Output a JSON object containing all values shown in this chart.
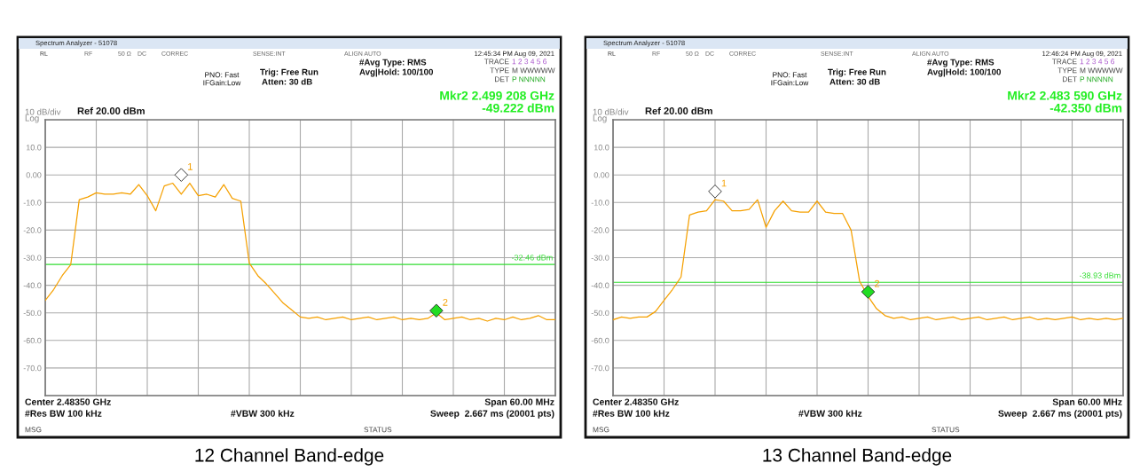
{
  "chart_data": [
    {
      "type": "line",
      "title": "12 Channel Band-edge",
      "annotations": [
        "Spectrum Analyzer - 51078",
        "RL",
        "RF",
        "50 Ω",
        "DC",
        "CORREC",
        "SENSE:INT",
        "ALIGN AUTO",
        "12:45:34 PM Aug 09, 2021",
        "PNO: Fast",
        "IFGain:Low",
        "Trig: Free Run",
        "Atten: 30 dB",
        "#Avg Type: RMS",
        "Avg|Hold: 100/100",
        "TRACE",
        "1 2 3 4 5 6",
        "TYPE",
        "M WWWWW",
        "DET",
        "P NNNNN",
        "Mkr2 2.499 208 GHz",
        "-49.222 dBm",
        "10 dB/div",
        "Log",
        "Ref 20.00 dBm",
        "Center 2.48350 GHz",
        "#Res BW 100 kHz",
        "#VBW 300 kHz",
        "Span 60.00 MHz",
        "Sweep  2.667 ms (20001 pts)",
        "MSG",
        "STATUS"
      ],
      "categories": [
        null,
        null,
        null,
        null,
        null,
        null,
        null,
        null,
        null,
        null,
        null,
        null,
        null,
        null,
        null,
        null,
        null,
        null,
        null,
        null,
        null,
        null,
        null,
        null,
        null,
        null,
        null,
        null,
        null,
        null,
        null,
        null,
        null,
        null,
        null,
        null,
        null,
        null,
        null,
        null,
        null,
        null,
        null,
        null,
        null,
        null,
        null,
        null,
        null,
        null,
        null,
        null,
        null,
        null,
        null,
        null,
        null,
        null,
        null,
        null,
        null
      ],
      "ylim": [
        -80,
        20
      ],
      "yticks": [
        {
          "value": 20,
          "label": null
        },
        {
          "value": 10,
          "label": "10.0"
        },
        {
          "value": 0,
          "label": "0.00"
        },
        {
          "value": -10,
          "label": "-10.0"
        },
        {
          "value": -20,
          "label": "-20.0"
        },
        {
          "value": -30,
          "label": "-30.0"
        },
        {
          "value": -40,
          "label": "-40.0"
        },
        {
          "value": -50,
          "label": "-50.0"
        },
        {
          "value": -60,
          "label": "-60.0"
        },
        {
          "value": -70,
          "label": "-70.0"
        },
        {
          "value": -80,
          "label": null
        }
      ],
      "tick_labels": "y",
      "grid": true,
      "ref_lines": [
        {
          "axis": "y",
          "value": -32.46,
          "label": "-32.46 dBm",
          "color": "#33dd33"
        }
      ],
      "series": [
        {
          "color": "#f5a000",
          "values": [
            -45.5,
            -41.5,
            -36.5,
            -32.5,
            -9,
            -8,
            -6.5,
            -7,
            -7,
            -6.5,
            -7,
            -3.5,
            -7.5,
            -13,
            -4,
            -3,
            -7,
            -3,
            -7.5,
            -7,
            -8,
            -3.5,
            -8.5,
            -9.5,
            -32,
            -36.5,
            -39.5,
            -43,
            -46.5,
            -49,
            -51.5,
            -52,
            -51.5,
            -52.5,
            -52,
            -51.5,
            -52.5,
            -52,
            -51.5,
            -52.5,
            -52,
            -51.5,
            -52.5,
            -52,
            -52.5,
            -52,
            -50,
            -52.5,
            -52,
            -51.5,
            -52.5,
            -52,
            -53,
            -52,
            -52.5,
            -51.5,
            -52.5,
            -52,
            -51,
            -52.5,
            -52.5
          ]
        },
        {
          "type": "scatter",
          "name": "1",
          "color": "#ffffff",
          "marker": "diamond",
          "values": [
            null,
            null,
            null,
            null,
            null,
            null,
            null,
            null,
            null,
            null,
            null,
            null,
            null,
            null,
            null,
            null,
            0,
            null,
            null,
            null,
            null,
            null,
            null,
            null,
            null,
            null,
            null,
            null,
            null,
            null,
            null,
            null,
            null,
            null,
            null,
            null,
            null,
            null,
            null,
            null,
            null,
            null,
            null,
            null,
            null,
            null,
            null,
            null,
            null,
            null,
            null,
            null,
            null,
            null,
            null,
            null,
            null,
            null,
            null,
            null,
            null
          ]
        },
        {
          "type": "scatter",
          "name": "2",
          "color": "#22dd22",
          "marker": "diamond",
          "values": [
            null,
            null,
            null,
            null,
            null,
            null,
            null,
            null,
            null,
            null,
            null,
            null,
            null,
            null,
            null,
            null,
            null,
            null,
            null,
            null,
            null,
            null,
            null,
            null,
            null,
            null,
            null,
            null,
            null,
            null,
            null,
            null,
            null,
            null,
            null,
            null,
            null,
            null,
            null,
            null,
            null,
            null,
            null,
            null,
            null,
            null,
            -49.2,
            null,
            null,
            null,
            null,
            null,
            null,
            null,
            null,
            null,
            null,
            null,
            null,
            null,
            null
          ]
        }
      ]
    },
    {
      "type": "line",
      "title": "13 Channel Band-edge",
      "annotations": [
        "Spectrum Analyzer - 51078",
        "RL",
        "RF",
        "50 Ω",
        "DC",
        "CORREC",
        "SENSE:INT",
        "ALIGN AUTO",
        "12:46:24 PM Aug 09, 2021",
        "PNO: Fast",
        "IFGain:Low",
        "Trig: Free Run",
        "Atten: 30 dB",
        "#Avg Type: RMS",
        "Avg|Hold: 100/100",
        "TRACE",
        "1 2 3 4 5 6",
        "TYPE",
        "M WWWWW",
        "DET",
        "P NNNNN",
        "Mkr2 2.483 590 GHz",
        "-42.350 dBm",
        "10 dB/div",
        "Log",
        "Ref 20.00 dBm",
        "Center 2.48350 GHz",
        "#Res BW 100 kHz",
        "#VBW 300 kHz",
        "Span 60.00 MHz",
        "Sweep  2.667 ms (20001 pts)",
        "MSG",
        "STATUS"
      ],
      "categories": [
        null,
        null,
        null,
        null,
        null,
        null,
        null,
        null,
        null,
        null,
        null,
        null,
        null,
        null,
        null,
        null,
        null,
        null,
        null,
        null,
        null,
        null,
        null,
        null,
        null,
        null,
        null,
        null,
        null,
        null,
        null,
        null,
        null,
        null,
        null,
        null,
        null,
        null,
        null,
        null,
        null,
        null,
        null,
        null,
        null,
        null,
        null,
        null,
        null,
        null,
        null,
        null,
        null,
        null,
        null,
        null,
        null,
        null,
        null,
        null,
        null
      ],
      "ylim": [
        -80,
        20
      ],
      "yticks": [
        {
          "value": 20,
          "label": null
        },
        {
          "value": 10,
          "label": "10.0"
        },
        {
          "value": 0,
          "label": "0.00"
        },
        {
          "value": -10,
          "label": "-10.0"
        },
        {
          "value": -20,
          "label": "-20.0"
        },
        {
          "value": -30,
          "label": "-30.0"
        },
        {
          "value": -40,
          "label": "-40.0"
        },
        {
          "value": -50,
          "label": "-50.0"
        },
        {
          "value": -60,
          "label": "-60.0"
        },
        {
          "value": -70,
          "label": "-70.0"
        },
        {
          "value": -80,
          "label": null
        }
      ],
      "tick_labels": "y",
      "grid": true,
      "ref_lines": [
        {
          "axis": "y",
          "value": -38.93,
          "label": "-38.93 dBm",
          "color": "#33dd33"
        }
      ],
      "series": [
        {
          "color": "#f5a000",
          "values": [
            -52.5,
            -51.5,
            -52,
            -51.5,
            -51.5,
            -49.5,
            -45.5,
            -41.5,
            -37,
            -14.5,
            -13.5,
            -13,
            -9,
            -9.5,
            -13,
            -13,
            -12.5,
            -9,
            -19,
            -13,
            -9.5,
            -13,
            -13.5,
            -13.5,
            -9.5,
            -13.5,
            -14,
            -14,
            -20,
            -38.5,
            -44,
            -48.5,
            -51,
            -52,
            -51.5,
            -52.5,
            -52,
            -51.5,
            -52.5,
            -52,
            -51.5,
            -52.5,
            -52,
            -51.5,
            -52.5,
            -52,
            -51.5,
            -52.5,
            -52,
            -51.5,
            -52.5,
            -52,
            -52.5,
            -52,
            -51.5,
            -52.5,
            -52,
            -52.5,
            -52,
            -52.5,
            -52
          ]
        },
        {
          "type": "scatter",
          "name": "1",
          "color": "#ffffff",
          "marker": "diamond",
          "values": [
            null,
            null,
            null,
            null,
            null,
            null,
            null,
            null,
            null,
            null,
            null,
            null,
            -6,
            null,
            null,
            null,
            null,
            null,
            null,
            null,
            null,
            null,
            null,
            null,
            null,
            null,
            null,
            null,
            null,
            null,
            null,
            null,
            null,
            null,
            null,
            null,
            null,
            null,
            null,
            null,
            null,
            null,
            null,
            null,
            null,
            null,
            null,
            null,
            null,
            null,
            null,
            null,
            null,
            null,
            null,
            null,
            null,
            null,
            null,
            null,
            null
          ]
        },
        {
          "type": "scatter",
          "name": "2",
          "color": "#22dd22",
          "marker": "diamond",
          "values": [
            null,
            null,
            null,
            null,
            null,
            null,
            null,
            null,
            null,
            null,
            null,
            null,
            null,
            null,
            null,
            null,
            null,
            null,
            null,
            null,
            null,
            null,
            null,
            null,
            null,
            null,
            null,
            null,
            null,
            null,
            -42.4,
            null,
            null,
            null,
            null,
            null,
            null,
            null,
            null,
            null,
            null,
            null,
            null,
            null,
            null,
            null,
            null,
            null,
            null,
            null,
            null,
            null,
            null,
            null,
            null,
            null,
            null,
            null,
            null,
            null,
            null
          ]
        }
      ]
    }
  ]
}
